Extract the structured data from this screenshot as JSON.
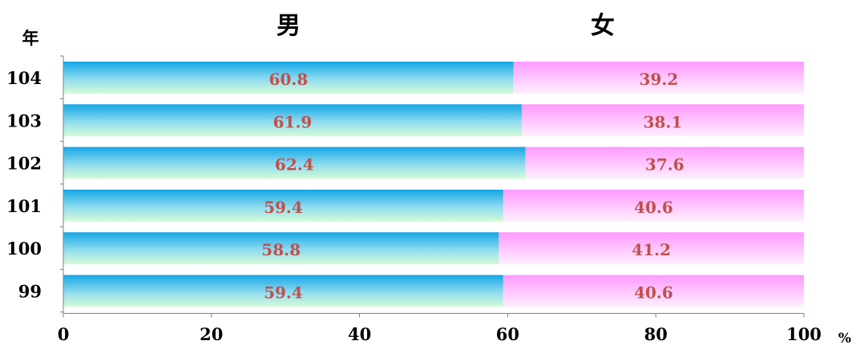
{
  "chart_data": {
    "type": "bar",
    "stacked": true,
    "orientation": "horizontal",
    "ylabel": "年",
    "x_unit": "%",
    "xlim": [
      0,
      100
    ],
    "x_ticks": [
      "0",
      "20",
      "40",
      "60",
      "80",
      "100"
    ],
    "categories": [
      "104",
      "103",
      "102",
      "101",
      "100",
      "99"
    ],
    "series": [
      {
        "name": "男",
        "values": [
          60.8,
          61.9,
          62.4,
          59.4,
          58.8,
          59.4
        ],
        "color_top": "#14a6e6",
        "color_bottom": "#d6fbd6"
      },
      {
        "name": "女",
        "values": [
          39.2,
          38.1,
          37.6,
          40.6,
          41.2,
          40.6
        ],
        "color_top": "#ff99ff",
        "color_bottom": "#fff0ff"
      }
    ],
    "data_label_color": "#c0504d",
    "grid": false,
    "legend": "top"
  }
}
